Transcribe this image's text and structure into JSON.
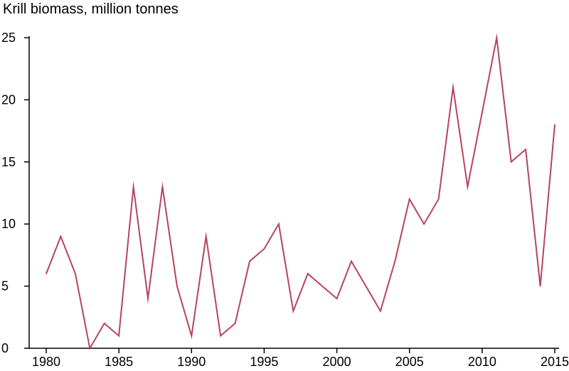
{
  "chart_data": {
    "type": "line",
    "title": "Krill biomass, million tonnes",
    "xlabel": "",
    "ylabel": "",
    "xlim": [
      1980,
      2015
    ],
    "ylim": [
      0,
      25
    ],
    "x_ticks": [
      "1980",
      "1985",
      "1990",
      "1995",
      "2000",
      "2005",
      "2010",
      "2015"
    ],
    "y_ticks": [
      "0",
      "5",
      "10",
      "15",
      "20",
      "25"
    ],
    "grid": false,
    "line_color": "#b5445e",
    "series": [
      {
        "x": [
          1980,
          1981,
          1982,
          1983,
          1984,
          1985,
          1986,
          1987,
          1988,
          1989,
          1990,
          1991,
          1992,
          1993,
          1994,
          1995,
          1996,
          1997,
          1998,
          1999,
          2000,
          2001,
          2002,
          2003,
          2004,
          2005,
          2006,
          2007,
          2008,
          2009,
          2010,
          2011,
          2012,
          2013,
          2014,
          2015
        ],
        "values": [
          6,
          9,
          6,
          0,
          2,
          1,
          13,
          4,
          13,
          5,
          1,
          9,
          1,
          2,
          7,
          8,
          10,
          3,
          6,
          5,
          4,
          7,
          5,
          3,
          7,
          12,
          10,
          12,
          21,
          13,
          19,
          25,
          15,
          16,
          5,
          18
        ]
      }
    ]
  }
}
